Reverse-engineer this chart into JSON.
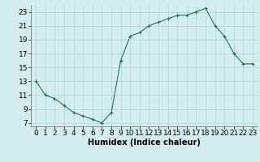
{
  "x": [
    0,
    1,
    2,
    3,
    4,
    5,
    6,
    7,
    8,
    9,
    10,
    11,
    12,
    13,
    14,
    15,
    16,
    17,
    18,
    19,
    20,
    21,
    22,
    23
  ],
  "y": [
    13,
    11,
    10.5,
    9.5,
    8.5,
    8.0,
    7.5,
    7.0,
    8.5,
    16.0,
    19.5,
    20.0,
    21.0,
    21.5,
    22.0,
    22.5,
    22.5,
    23.0,
    23.5,
    21.0,
    19.5,
    17.0,
    15.5,
    15.5
  ],
  "xlabel": "Humidex (Indice chaleur)",
  "ylim": [
    6.5,
    24.0
  ],
  "xlim": [
    -0.5,
    23.5
  ],
  "yticks": [
    7,
    9,
    11,
    13,
    15,
    17,
    19,
    21,
    23
  ],
  "xticks": [
    0,
    1,
    2,
    3,
    4,
    5,
    6,
    7,
    8,
    9,
    10,
    11,
    12,
    13,
    14,
    15,
    16,
    17,
    18,
    19,
    20,
    21,
    22,
    23
  ],
  "line_color": "#2d6e5e",
  "marker": "+",
  "marker_size": 3,
  "bg_color": "#d4eeee",
  "grid_color": "#b8d8d8",
  "xlabel_fontsize": 7,
  "tick_fontsize": 6.5
}
